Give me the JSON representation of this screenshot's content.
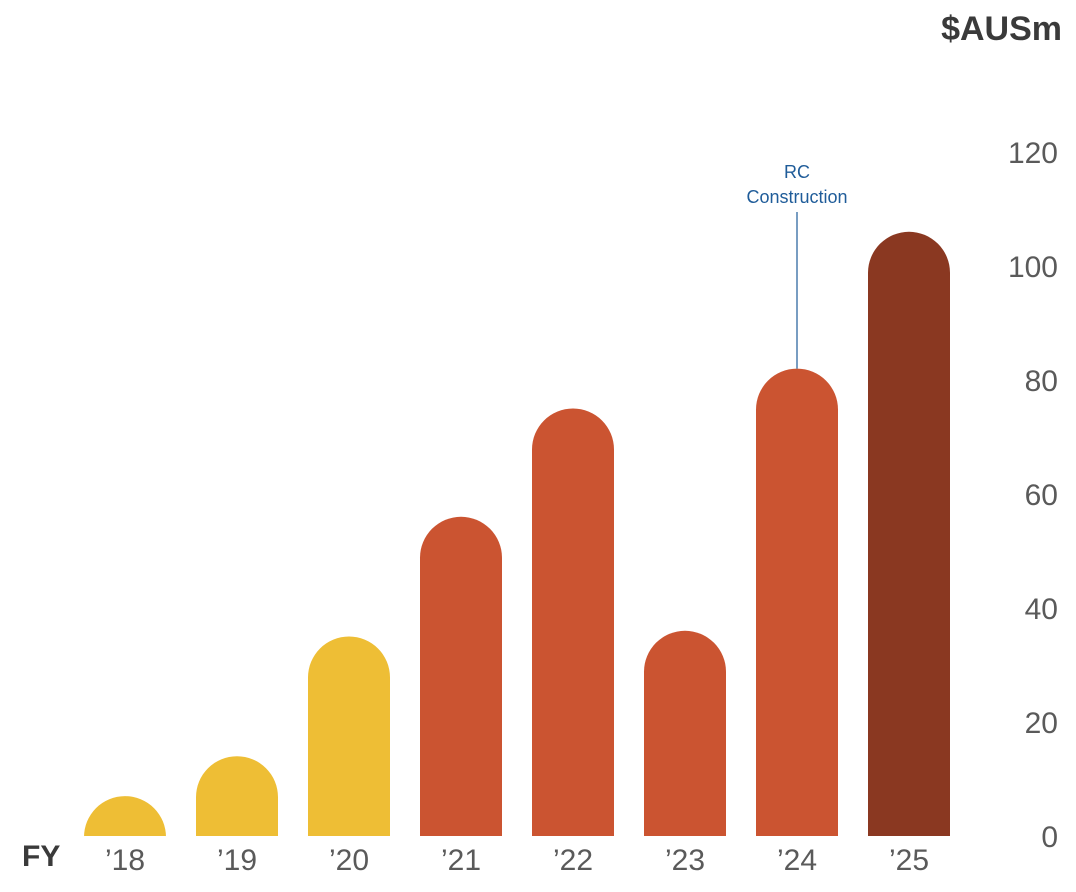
{
  "chart_data": {
    "type": "bar",
    "unit_label": "$AUSm",
    "xlabel": "FY",
    "categories": [
      "’18",
      "’19",
      "’20",
      "’21",
      "’22",
      "’23",
      "’24",
      "’25"
    ],
    "values": [
      7,
      14,
      35,
      56,
      75,
      36,
      82,
      106
    ],
    "bar_colors": [
      "#EEBE35",
      "#EEBE35",
      "#EEBE35",
      "#CB5431",
      "#CB5431",
      "#CB5431",
      "#CB5431",
      "#8A3821"
    ],
    "ylim": [
      0,
      120
    ],
    "yticks": [
      0,
      20,
      40,
      60,
      80,
      100,
      120
    ],
    "yaxis_position": "right",
    "grid": false,
    "annotations": [
      {
        "category_index": 6,
        "text_lines": [
          "RC",
          "Construction"
        ],
        "color": "#1F5C99"
      }
    ]
  }
}
